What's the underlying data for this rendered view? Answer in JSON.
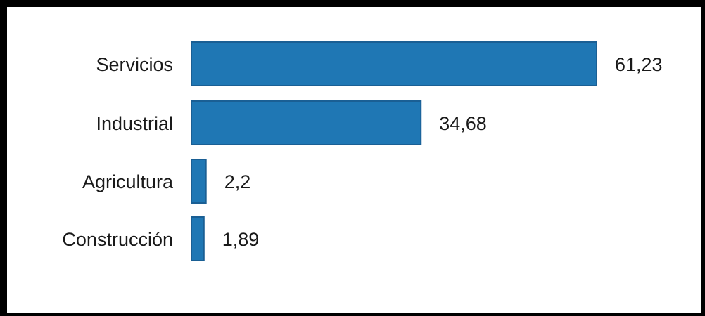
{
  "chart_data": {
    "type": "bar",
    "orientation": "horizontal",
    "categories": [
      "Servicios",
      "Industrial",
      "Agricultura",
      "Construcción"
    ],
    "values": [
      61.23,
      34.68,
      2.2,
      1.89
    ],
    "value_labels": [
      "61,23",
      "34,68",
      "2,2",
      "1,89"
    ],
    "title": "",
    "xlabel": "",
    "ylabel": "",
    "xlim": [
      0,
      61.23
    ],
    "grid": false,
    "legend": "none",
    "colors": {
      "bar": "#1f77b4",
      "bar_border": "#1a5f94",
      "text": "#1a1a1a",
      "frame": "#000000",
      "background": "#ffffff"
    }
  }
}
